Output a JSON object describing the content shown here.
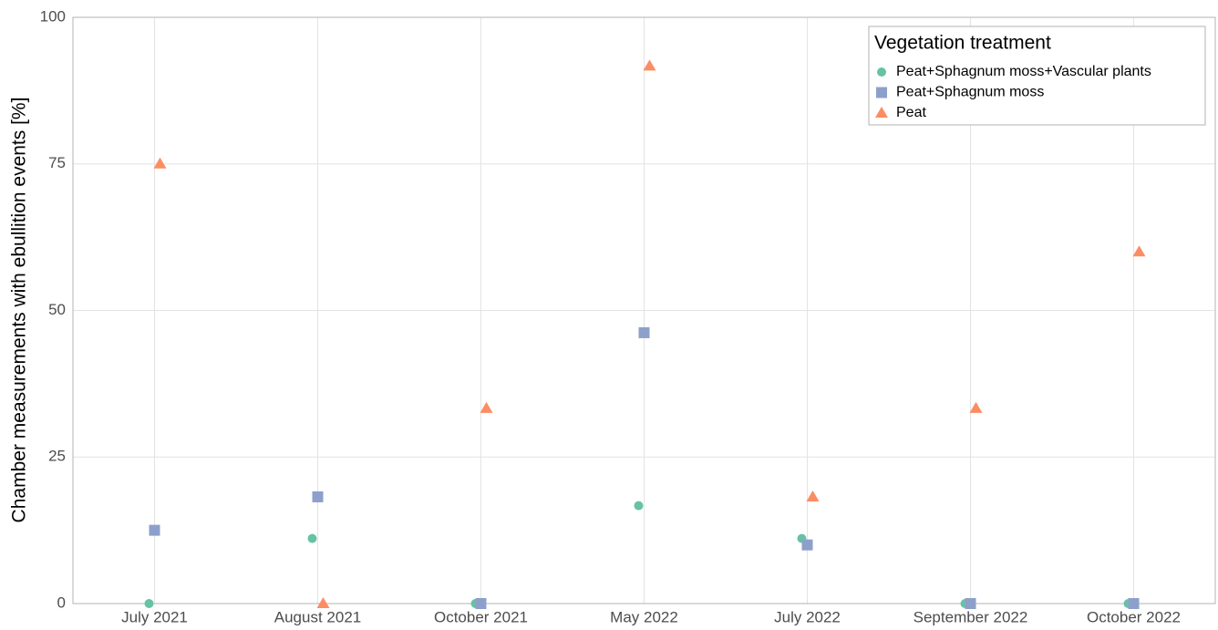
{
  "chart_data": {
    "type": "scatter",
    "y_label": "Chamber measurements with ebullition events [%]",
    "categories": [
      "July 2021",
      "August 2021",
      "October 2021",
      "May 2022",
      "July 2022",
      "September 2022",
      "October 2022"
    ],
    "series": [
      {
        "name": "Peat+Sphagnum moss+Vascular plants",
        "color": "#66c2a5",
        "marker": "circle",
        "values": [
          0,
          11.1,
          0,
          16.7,
          11.1,
          0,
          0
        ]
      },
      {
        "name": "Peat+Sphagnum moss",
        "color": "#8da0cb",
        "marker": "square",
        "values": [
          12.5,
          18.2,
          0,
          46.2,
          10,
          0,
          0
        ]
      },
      {
        "name": "Peat",
        "color": "#fc8d62",
        "marker": "triangle",
        "values": [
          75,
          0,
          33.3,
          91.7,
          18.2,
          33.3,
          60
        ]
      }
    ],
    "legend_title": "Vegetation treatment",
    "legend_position": "top-right",
    "ylim": [
      0,
      100
    ],
    "yticks": [
      0,
      25,
      50,
      75,
      100
    ],
    "grid": true
  }
}
